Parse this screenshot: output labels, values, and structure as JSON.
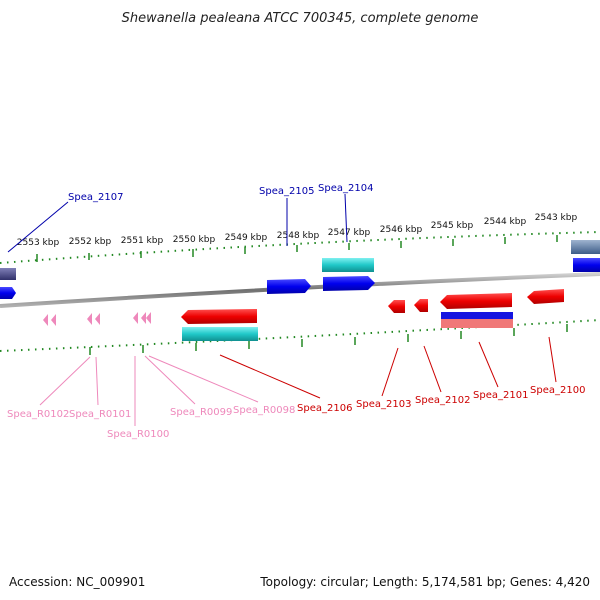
{
  "title": "Shewanella pealeana ATCC 700345, complete genome",
  "footer": {
    "accession": "Accession: NC_009901",
    "summary": "Topology: circular; Length: 5,174,581 bp; Genes: 4,420"
  },
  "colors": {
    "forward_gene": "#0000ee",
    "reverse_gene": "#ee0000",
    "rna": "#ee88bb",
    "cds_cyan": "#20c8c8",
    "tick": "#228822",
    "backbone": "#888888",
    "forward_label": "#0000aa",
    "reverse_label": "#cc0000",
    "rna_label": "#ee88bb"
  },
  "scale_ticks": [
    "2553 kbp",
    "2552 kbp",
    "2551 kbp",
    "2550 kbp",
    "2549 kbp",
    "2548 kbp",
    "2547 kbp",
    "2546 kbp",
    "2545 kbp",
    "2544 kbp",
    "2543 kbp"
  ],
  "gene_labels": {
    "forward": [
      "Spea_2107",
      "Spea_2105",
      "Spea_2104"
    ],
    "reverse": [
      "Spea_2106",
      "Spea_2103",
      "Spea_2102",
      "Spea_2101",
      "Spea_2100"
    ],
    "rna": [
      "Spea_R0102",
      "Spea_R0101",
      "Spea_R0100",
      "Spea_R0099",
      "Spea_R0098"
    ]
  }
}
